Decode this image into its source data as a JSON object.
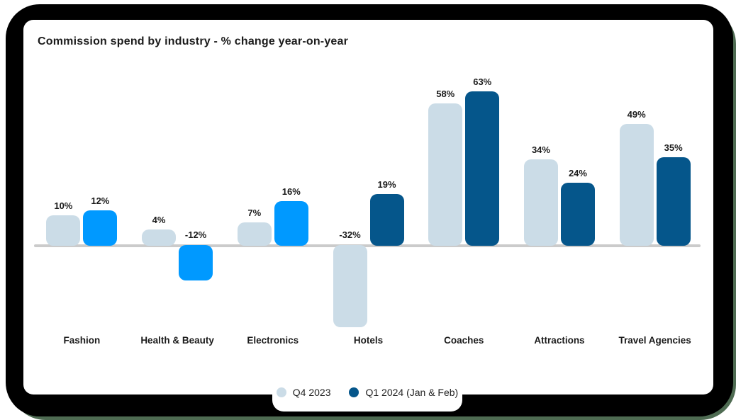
{
  "title": "Commission spend by industry - % change year-on-year",
  "colors": {
    "q4": "#CBDCE7",
    "q1_dark": "#05568B",
    "q1_bright": "#0099FF",
    "axis": "#CBCBCB",
    "card_bg": "#FFFFFF",
    "backdrop": "#000000",
    "backdrop_edge": "#4E6B52",
    "text": "#1B1B1B"
  },
  "chart_data": {
    "type": "bar",
    "title": "Commission spend by industry - % change year-on-year",
    "categories": [
      "Fashion",
      "Health & Beauty",
      "Electronics",
      "Hotels",
      "Coaches",
      "Attractions",
      "Travel Agencies"
    ],
    "series": [
      {
        "name": "Q4 2023",
        "values": [
          10,
          4,
          7,
          -32,
          58,
          34,
          49
        ]
      },
      {
        "name": "Q1 2024 (Jan & Feb)",
        "values": [
          12,
          -12,
          16,
          19,
          63,
          24,
          35
        ]
      }
    ],
    "q1_bar_styles": [
      "bright",
      "bright",
      "bright",
      "dark",
      "dark",
      "dark",
      "dark"
    ],
    "value_suffix": "%",
    "value_labels_shown": true,
    "baseline": 0,
    "ylim": [
      -32,
      63
    ],
    "grid": false,
    "legend_position": "bottom"
  },
  "legend": {
    "items": [
      {
        "label": "Q4 2023",
        "color_key": "q4"
      },
      {
        "label": "Q1 2024 (Jan & Feb)",
        "color_key": "q1_dark"
      }
    ]
  }
}
